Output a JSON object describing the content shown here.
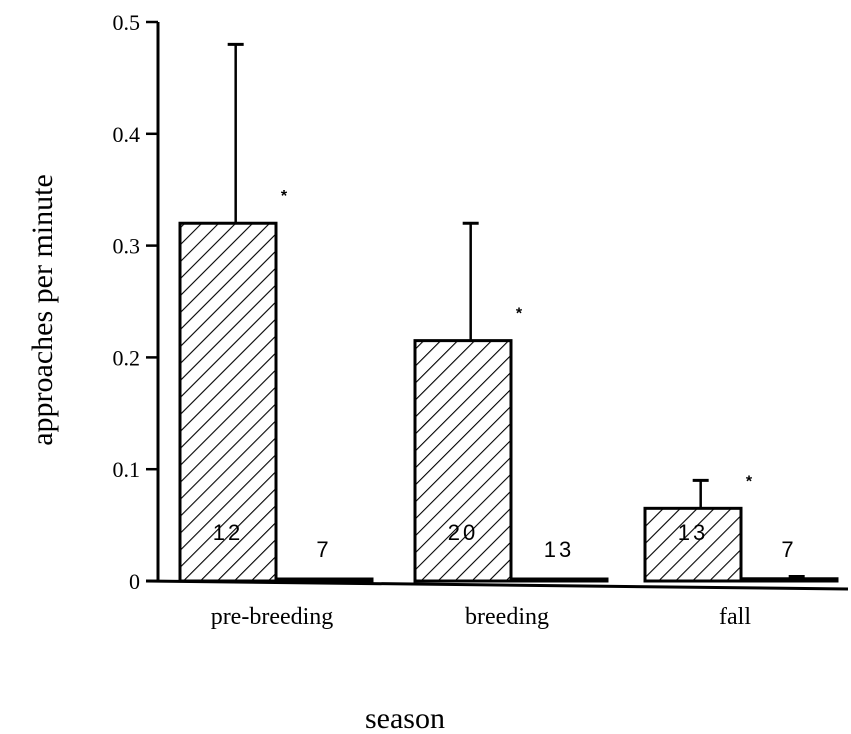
{
  "chart_data": {
    "type": "bar",
    "categories": [
      "pre-breeding",
      "breeding",
      "fall"
    ],
    "xlabel": "season",
    "ylabel": "approaches per minute",
    "ylim": [
      0,
      0.5
    ],
    "yticks": [
      "0",
      "0.1",
      "0.2",
      "0.3",
      "0.4",
      "0.5"
    ],
    "grid": false,
    "legend": "none",
    "series": [
      {
        "fill": "hatched",
        "values": [
          0.32,
          0.215,
          0.065
        ],
        "error_upper": [
          0.48,
          0.32,
          0.09
        ],
        "n_labels": [
          "12",
          "20",
          "13"
        ],
        "significance": [
          "*",
          "*",
          "*"
        ]
      },
      {
        "fill": "white",
        "values": [
          0.001,
          0.0,
          0.002
        ],
        "error_upper": [
          null,
          null,
          0.004
        ],
        "n_labels": [
          "7",
          "13",
          "7"
        ]
      }
    ]
  }
}
